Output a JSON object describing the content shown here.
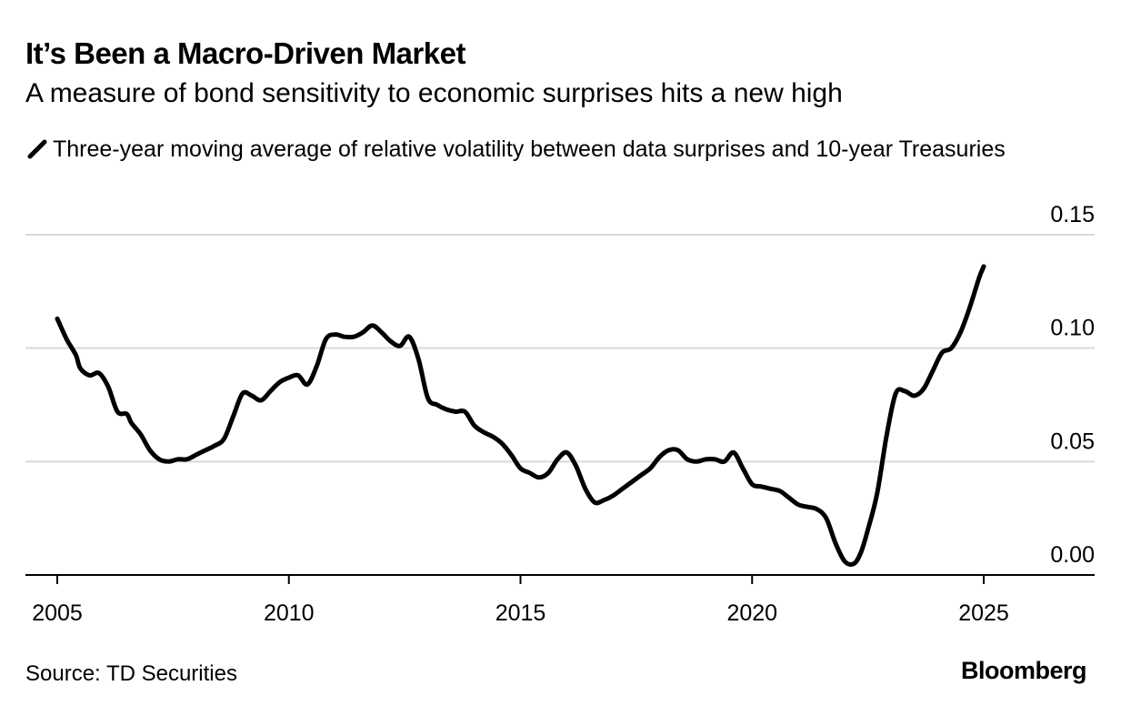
{
  "header": {
    "title": "It’s Been a Macro-Driven Market",
    "subtitle": "A measure of bond sensitivity to economic surprises hits a new high"
  },
  "footer": {
    "source": "Source: TD Securities",
    "brand": "Bloomberg"
  },
  "colors": {
    "line": "#000000",
    "grid": "#d9d9d9",
    "axis": "#000000"
  },
  "chart_data": {
    "type": "line",
    "title": "It’s Been a Macro-Driven Market",
    "subtitle": "A measure of bond sensitivity to economic surprises hits a new high",
    "xlabel": "",
    "ylabel": "",
    "xlim": [
      2005,
      2027.3
    ],
    "ylim": [
      0,
      0.15
    ],
    "x_ticks": [
      "2005",
      "2010",
      "2015",
      "2020",
      "2025"
    ],
    "x_tick_values": [
      2005,
      2010,
      2015,
      2020,
      2025
    ],
    "y_ticks": [
      "0.00",
      "0.05",
      "0.10",
      "0.15"
    ],
    "y_tick_values": [
      0,
      0.05,
      0.1,
      0.15
    ],
    "grid": true,
    "legend_position": "top-left",
    "series": [
      {
        "name": "Three-year moving average of relative volatility between data surprises and 10-year Treasuries",
        "x": [
          2005.0,
          2005.2,
          2005.4,
          2005.5,
          2005.7,
          2005.9,
          2006.1,
          2006.3,
          2006.5,
          2006.6,
          2006.8,
          2007.0,
          2007.2,
          2007.4,
          2007.6,
          2007.8,
          2008.0,
          2008.2,
          2008.4,
          2008.6,
          2008.8,
          2009.0,
          2009.2,
          2009.4,
          2009.6,
          2009.8,
          2010.0,
          2010.2,
          2010.4,
          2010.6,
          2010.8,
          2011.0,
          2011.2,
          2011.4,
          2011.6,
          2011.8,
          2012.0,
          2012.2,
          2012.4,
          2012.6,
          2012.8,
          2013.0,
          2013.2,
          2013.4,
          2013.6,
          2013.8,
          2014.0,
          2014.2,
          2014.4,
          2014.6,
          2014.8,
          2015.0,
          2015.2,
          2015.4,
          2015.6,
          2015.8,
          2016.0,
          2016.2,
          2016.4,
          2016.6,
          2016.8,
          2017.0,
          2017.2,
          2017.4,
          2017.6,
          2017.8,
          2018.0,
          2018.2,
          2018.4,
          2018.6,
          2018.8,
          2019.0,
          2019.2,
          2019.4,
          2019.6,
          2019.8,
          2020.0,
          2020.2,
          2020.4,
          2020.6,
          2020.8,
          2021.0,
          2021.2,
          2021.4,
          2021.6,
          2021.8,
          2022.0,
          2022.2,
          2022.35,
          2022.5,
          2022.7,
          2022.9,
          2023.1,
          2023.3,
          2023.5,
          2023.7,
          2023.9,
          2024.1,
          2024.3,
          2024.5,
          2024.7,
          2024.9,
          2025.0
        ],
        "values": [
          0.113,
          0.104,
          0.097,
          0.091,
          0.088,
          0.089,
          0.083,
          0.072,
          0.071,
          0.067,
          0.062,
          0.055,
          0.051,
          0.05,
          0.051,
          0.051,
          0.053,
          0.055,
          0.057,
          0.06,
          0.07,
          0.08,
          0.079,
          0.077,
          0.081,
          0.085,
          0.087,
          0.088,
          0.084,
          0.092,
          0.104,
          0.106,
          0.105,
          0.105,
          0.107,
          0.11,
          0.107,
          0.103,
          0.101,
          0.105,
          0.095,
          0.078,
          0.075,
          0.073,
          0.072,
          0.072,
          0.066,
          0.063,
          0.061,
          0.058,
          0.053,
          0.047,
          0.045,
          0.043,
          0.045,
          0.051,
          0.054,
          0.048,
          0.038,
          0.032,
          0.033,
          0.035,
          0.038,
          0.041,
          0.044,
          0.047,
          0.052,
          0.055,
          0.055,
          0.051,
          0.05,
          0.051,
          0.051,
          0.05,
          0.054,
          0.047,
          0.04,
          0.039,
          0.038,
          0.037,
          0.034,
          0.031,
          0.03,
          0.029,
          0.025,
          0.014,
          0.006,
          0.005,
          0.01,
          0.02,
          0.036,
          0.061,
          0.08,
          0.081,
          0.079,
          0.082,
          0.09,
          0.098,
          0.1,
          0.107,
          0.118,
          0.131,
          0.136
        ]
      }
    ]
  }
}
